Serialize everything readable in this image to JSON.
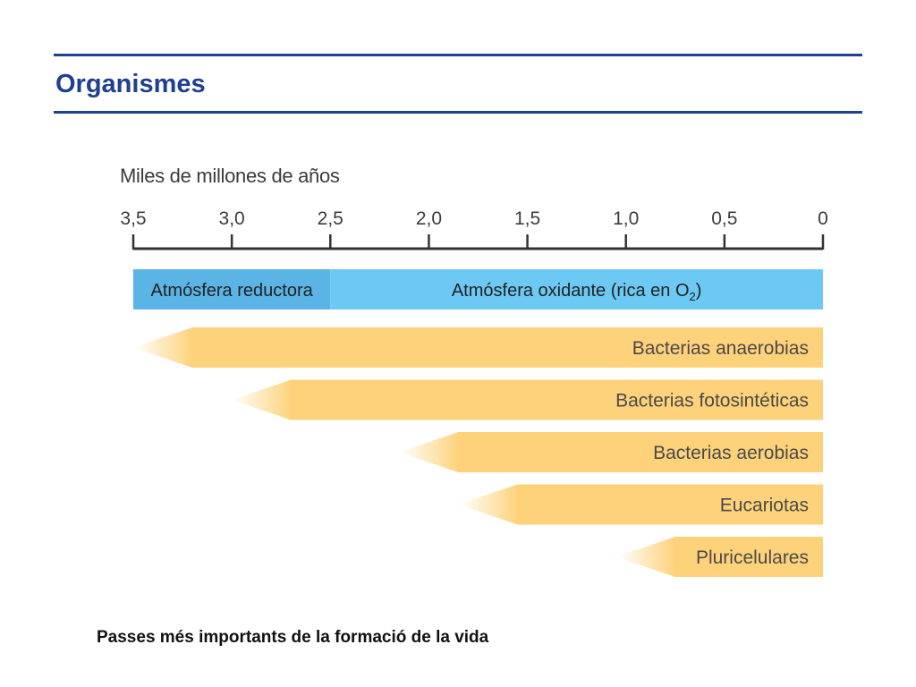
{
  "slide": {
    "title": "Organismes",
    "caption": "Passes més importants de la formació de la vida"
  },
  "chart_data": {
    "type": "timeline",
    "axis_title": "Miles de millones de años",
    "axis_direction": "reversed",
    "xlim": [
      3.5,
      0
    ],
    "ticks": [
      {
        "value": 3.5,
        "label": "3,5"
      },
      {
        "value": 3.0,
        "label": "3,0"
      },
      {
        "value": 2.5,
        "label": "2,5"
      },
      {
        "value": 2.0,
        "label": "2,0"
      },
      {
        "value": 1.5,
        "label": "1,5"
      },
      {
        "value": 1.0,
        "label": "1,0"
      },
      {
        "value": 0.5,
        "label": "0,5"
      },
      {
        "value": 0.0,
        "label": "0"
      }
    ],
    "atmosphere": [
      {
        "label": "Atmósfera reductora",
        "start": 3.5,
        "end": 2.5,
        "color": "#5ab4e5"
      },
      {
        "label": "Atmósfera oxidante (rica en O",
        "subscript": "2",
        "suffix": ")",
        "start": 2.5,
        "end": 0,
        "color": "#6cc9f4"
      }
    ],
    "organisms": [
      {
        "label": "Bacterias anaerobias",
        "start": 3.5,
        "solid_from": 3.2,
        "end": 0
      },
      {
        "label": "Bacterias fotosintéticas",
        "start": 3.0,
        "solid_from": 2.7,
        "end": 0
      },
      {
        "label": "Bacterias aerobias",
        "start": 2.15,
        "solid_from": 1.85,
        "end": 0
      },
      {
        "label": "Eucariotas",
        "start": 1.85,
        "solid_from": 1.55,
        "end": 0
      },
      {
        "label": "Pluricelulares",
        "start": 1.05,
        "solid_from": 0.75,
        "end": 0
      }
    ],
    "arrow_color": "#fdd27a"
  }
}
